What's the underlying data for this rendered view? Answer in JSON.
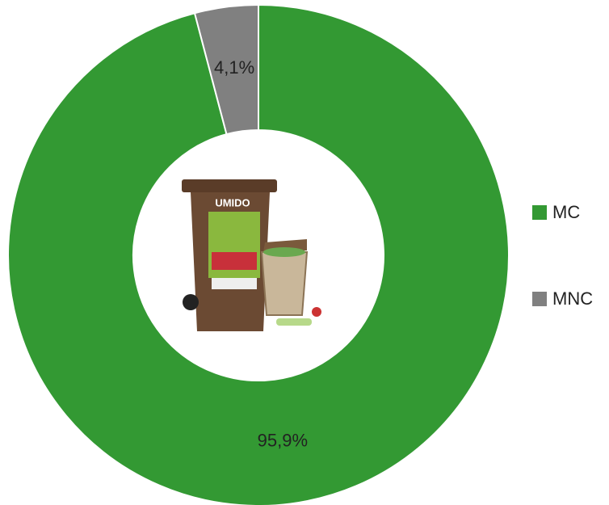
{
  "chart_data": {
    "type": "donut",
    "categories": [
      "MC",
      "MNC"
    ],
    "values": [
      95.9,
      4.1
    ],
    "value_labels": [
      "95,9%",
      "4,1%"
    ],
    "colors": [
      "#339933",
      "#808080"
    ],
    "legend": "right",
    "center_image_text": "UMIDO"
  }
}
